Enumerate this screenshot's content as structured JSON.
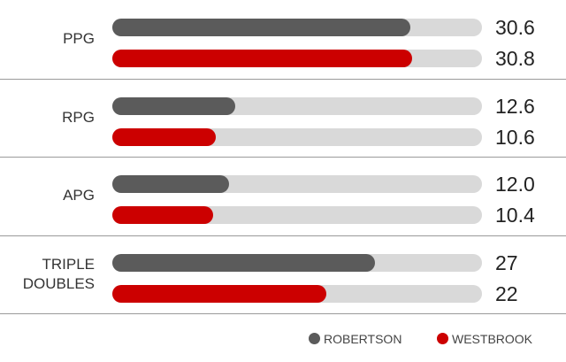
{
  "chart_data": {
    "type": "bar",
    "orientation": "horizontal",
    "categories": [
      "PPG",
      "RPG",
      "APG",
      "TRIPLE DOUBLES"
    ],
    "series": [
      {
        "name": "ROBERTSON",
        "color": "#5b5b5b",
        "values": [
          30.6,
          12.6,
          12.0,
          27
        ],
        "value_labels": [
          "30.6",
          "12.6",
          "12.0",
          "27"
        ]
      },
      {
        "name": "WESTBROOK",
        "color": "#cc0000",
        "values": [
          30.8,
          10.6,
          10.4,
          22
        ],
        "value_labels": [
          "30.8",
          "10.6",
          "10.4",
          "22"
        ]
      }
    ],
    "xlim": [
      0,
      38
    ]
  }
}
